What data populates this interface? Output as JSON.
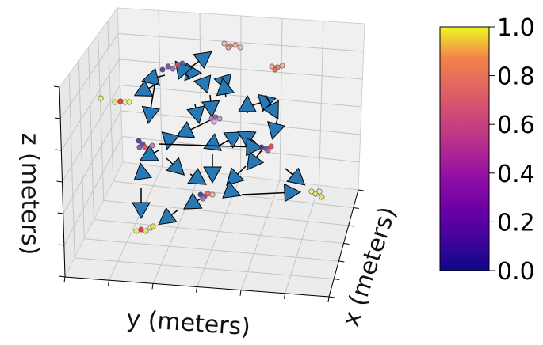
{
  "chart_data": {
    "type": "scatter",
    "projection": "3d",
    "xlabel": "x (meters)",
    "ylabel": "y (meters)",
    "zlabel": "z (meters)",
    "grid": true,
    "colorbar": {
      "colormap": "plasma",
      "range": [
        0.0,
        1.0
      ],
      "tick_labels": [
        "0.0",
        "0.2",
        "0.4",
        "0.6",
        "0.8",
        "1.0"
      ]
    },
    "arrow_color": "#2878b5"
  }
}
